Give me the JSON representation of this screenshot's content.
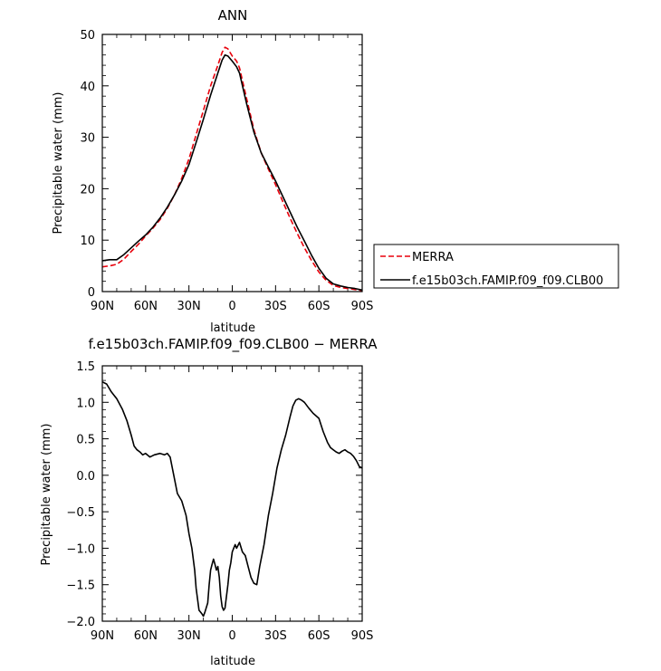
{
  "chart_data": [
    {
      "type": "line",
      "title": "ANN",
      "xlabel": "latitude",
      "ylabel": "Precipitable water (mm)",
      "xlim": [
        90,
        -90
      ],
      "ylim": [
        0,
        50
      ],
      "xticks": [
        {
          "value": 90,
          "label": "90N"
        },
        {
          "value": 60,
          "label": "60N"
        },
        {
          "value": 30,
          "label": "30N"
        },
        {
          "value": 0,
          "label": "0"
        },
        {
          "value": -30,
          "label": "30S"
        },
        {
          "value": -60,
          "label": "60S"
        },
        {
          "value": -90,
          "label": "90S"
        }
      ],
      "yticks": [
        {
          "value": 0,
          "label": "0"
        },
        {
          "value": 10,
          "label": "10"
        },
        {
          "value": 20,
          "label": "20"
        },
        {
          "value": 30,
          "label": "30"
        },
        {
          "value": 40,
          "label": "40"
        },
        {
          "value": 50,
          "label": "50"
        }
      ],
      "legend": "right",
      "series": [
        {
          "name": "MERRA",
          "color": "#e8000b",
          "style": "dashed",
          "x": [
            90,
            85,
            80,
            75,
            70,
            65,
            60,
            55,
            50,
            45,
            40,
            35,
            30,
            25,
            20,
            15,
            10,
            7,
            5,
            3,
            0,
            -3,
            -5,
            -10,
            -15,
            -20,
            -25,
            -30,
            -35,
            -40,
            -45,
            -50,
            -55,
            -60,
            -65,
            -70,
            -75,
            -80,
            -85,
            -90
          ],
          "y": [
            4.8,
            5.0,
            5.3,
            6.3,
            7.8,
            9.2,
            10.8,
            12.3,
            14.0,
            16.2,
            18.8,
            22.0,
            25.8,
            30.5,
            35.2,
            40.0,
            44.0,
            46.5,
            47.5,
            47.2,
            45.8,
            44.8,
            43.5,
            37.5,
            31.5,
            27.0,
            23.8,
            20.8,
            17.5,
            14.3,
            11.3,
            8.5,
            6.0,
            3.8,
            2.2,
            1.2,
            0.8,
            0.6,
            0.4,
            0.2
          ]
        },
        {
          "name": "f.e15b03ch.FAMIP.f09_f09.CLB00",
          "color": "#000000",
          "style": "solid",
          "x": [
            90,
            85,
            80,
            75,
            70,
            65,
            60,
            55,
            50,
            45,
            40,
            35,
            30,
            25,
            20,
            15,
            10,
            7,
            5,
            3,
            0,
            -3,
            -5,
            -10,
            -15,
            -20,
            -25,
            -30,
            -35,
            -40,
            -45,
            -50,
            -55,
            -60,
            -65,
            -70,
            -75,
            -80,
            -85,
            -90
          ],
          "y": [
            6.0,
            6.2,
            6.2,
            7.2,
            8.5,
            9.8,
            11.0,
            12.5,
            14.3,
            16.4,
            18.8,
            21.5,
            24.7,
            29.0,
            33.5,
            38.2,
            42.5,
            45.0,
            46.0,
            45.8,
            44.8,
            43.7,
            42.5,
            36.5,
            31.0,
            27.0,
            24.2,
            21.5,
            18.5,
            15.5,
            12.5,
            9.8,
            7.0,
            4.5,
            2.6,
            1.5,
            1.1,
            0.8,
            0.6,
            0.3
          ]
        }
      ]
    },
    {
      "type": "line",
      "title": "f.e15b03ch.FAMIP.f09_f09.CLB00 − MERRA",
      "xlabel": "latitude",
      "ylabel": "Precipitable water (mm)",
      "xlim": [
        90,
        -90
      ],
      "ylim": [
        -2.0,
        1.5
      ],
      "xticks": [
        {
          "value": 90,
          "label": "90N"
        },
        {
          "value": 60,
          "label": "60N"
        },
        {
          "value": 30,
          "label": "30N"
        },
        {
          "value": 0,
          "label": "0"
        },
        {
          "value": -30,
          "label": "30S"
        },
        {
          "value": -60,
          "label": "60S"
        },
        {
          "value": -90,
          "label": "90S"
        }
      ],
      "yticks": [
        {
          "value": -2.0,
          "label": "−2.0"
        },
        {
          "value": -1.5,
          "label": "−1.5"
        },
        {
          "value": -1.0,
          "label": "−1.0"
        },
        {
          "value": -0.5,
          "label": "−0.5"
        },
        {
          "value": 0.0,
          "label": "0.0"
        },
        {
          "value": 0.5,
          "label": "0.5"
        },
        {
          "value": 1.0,
          "label": "1.0"
        },
        {
          "value": 1.5,
          "label": "1.5"
        }
      ],
      "series": [
        {
          "color": "#000000",
          "style": "solid",
          "x": [
            90,
            87,
            84,
            80,
            76,
            73,
            70,
            68,
            66,
            64,
            62,
            60,
            57,
            54,
            50,
            47,
            45,
            43,
            41,
            38,
            35,
            32,
            30,
            28,
            26,
            25,
            23,
            21,
            20,
            19,
            17,
            16,
            15,
            14,
            13,
            12,
            11,
            10,
            9,
            8,
            7,
            6,
            5,
            3,
            2,
            1,
            0,
            -1,
            -2,
            -3,
            -5,
            -7,
            -9,
            -11,
            -13,
            -15,
            -17,
            -19,
            -22,
            -25,
            -28,
            -31,
            -34,
            -37,
            -40,
            -42,
            -44,
            -46,
            -48,
            -50,
            -53,
            -56,
            -60,
            -63,
            -66,
            -68,
            -70,
            -72,
            -74,
            -76,
            -78,
            -80,
            -82,
            -84,
            -86,
            -88,
            -90
          ],
          "y": [
            1.28,
            1.25,
            1.15,
            1.05,
            0.9,
            0.75,
            0.55,
            0.4,
            0.35,
            0.32,
            0.28,
            0.3,
            0.25,
            0.28,
            0.3,
            0.28,
            0.3,
            0.25,
            0.05,
            -0.25,
            -0.35,
            -0.55,
            -0.8,
            -1.0,
            -1.3,
            -1.55,
            -1.85,
            -1.9,
            -1.93,
            -1.88,
            -1.75,
            -1.5,
            -1.3,
            -1.22,
            -1.15,
            -1.22,
            -1.3,
            -1.25,
            -1.4,
            -1.65,
            -1.8,
            -1.85,
            -1.82,
            -1.5,
            -1.3,
            -1.2,
            -1.05,
            -1.0,
            -0.95,
            -1.0,
            -0.92,
            -1.05,
            -1.1,
            -1.25,
            -1.4,
            -1.48,
            -1.5,
            -1.25,
            -0.95,
            -0.55,
            -0.25,
            0.1,
            0.35,
            0.55,
            0.8,
            0.95,
            1.03,
            1.05,
            1.03,
            1.0,
            0.92,
            0.85,
            0.78,
            0.6,
            0.45,
            0.38,
            0.35,
            0.32,
            0.3,
            0.33,
            0.35,
            0.32,
            0.3,
            0.26,
            0.2,
            0.12,
            0.1
          ]
        }
      ]
    }
  ]
}
